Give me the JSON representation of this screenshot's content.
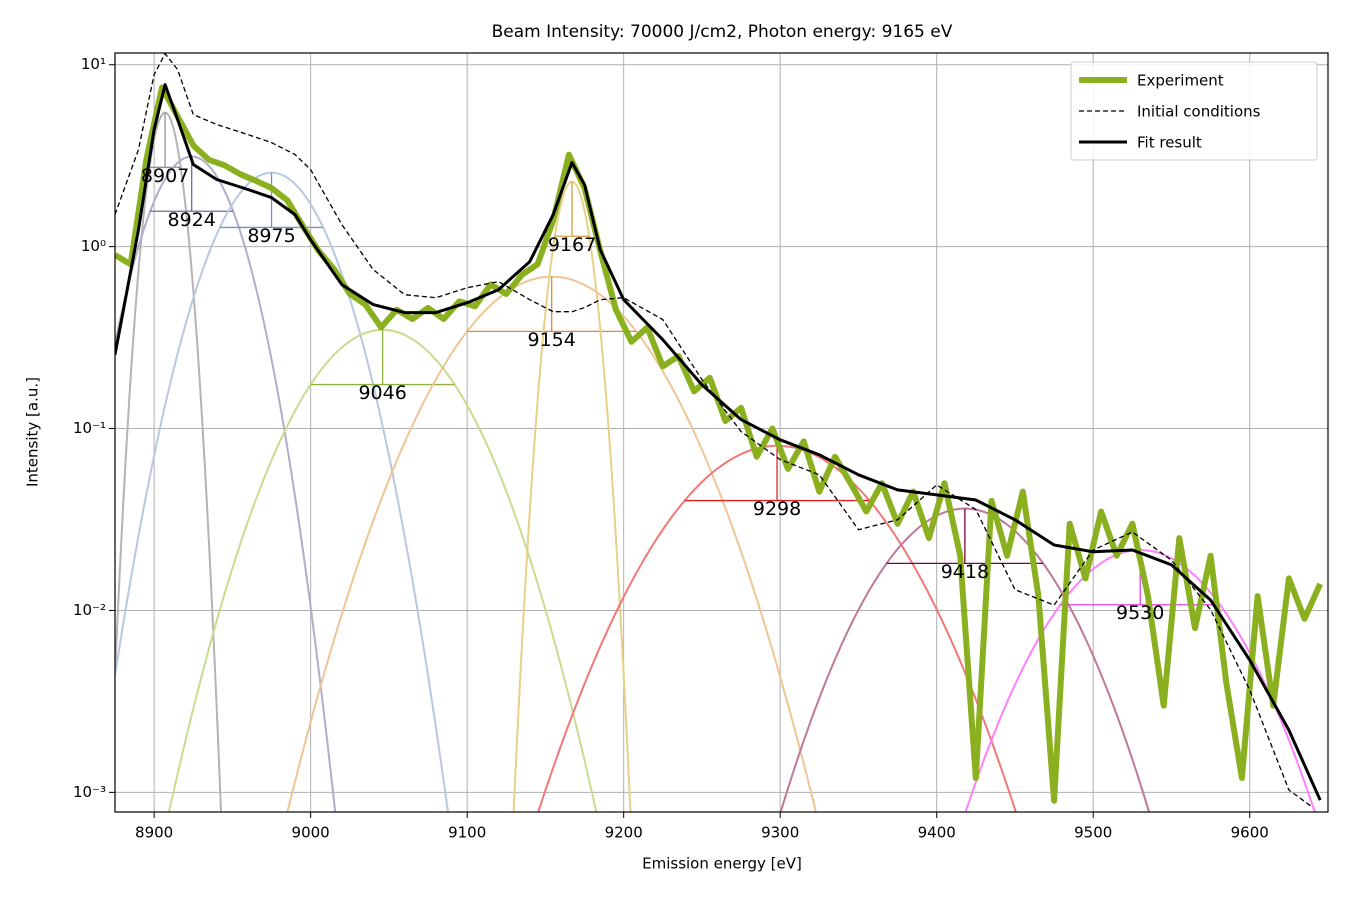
{
  "chart_data": {
    "type": "line",
    "title": "Beam Intensity: 70000 J/cm2, Photon energy: 9165 eV",
    "x_label": "Emission energy [eV]",
    "y_label": "Intensity [a.u.]",
    "log_y": true,
    "grid": true,
    "legend": "upper right",
    "xlim": [
      8875,
      9650
    ],
    "ylim": [
      0.00078,
      11.6
    ],
    "xticks": [
      8900,
      9000,
      9100,
      9200,
      9300,
      9400,
      9500,
      9600
    ],
    "yticks": [
      {
        "value": 0.001,
        "label": "10⁻³"
      },
      {
        "value": 0.01,
        "label": "10⁻²"
      },
      {
        "value": 0.1,
        "label": "10⁻¹"
      },
      {
        "value": 1,
        "label": "10⁰"
      },
      {
        "value": 10,
        "label": "10¹"
      }
    ],
    "series": [
      {
        "name": "Experiment",
        "color": "#8ab020",
        "style": "solid",
        "width": 6,
        "x": [
          8875,
          8885,
          8895,
          8905,
          8915,
          8925,
          8935,
          8945,
          8955,
          8965,
          8975,
          8985,
          8995,
          9005,
          9015,
          9025,
          9035,
          9045,
          9055,
          9065,
          9075,
          9085,
          9095,
          9105,
          9115,
          9125,
          9135,
          9145,
          9155,
          9165,
          9175,
          9185,
          9195,
          9205,
          9215,
          9225,
          9235,
          9245,
          9255,
          9265,
          9275,
          9285,
          9295,
          9305,
          9315,
          9325,
          9335,
          9345,
          9355,
          9365,
          9375,
          9385,
          9395,
          9405,
          9415,
          9425,
          9435,
          9445,
          9455,
          9465,
          9475,
          9485,
          9495,
          9505,
          9515,
          9525,
          9535,
          9545,
          9555,
          9565,
          9575,
          9585,
          9595,
          9605,
          9615,
          9625,
          9635,
          9645
        ],
        "values": [
          0.9,
          0.8,
          3.0,
          7.5,
          5.2,
          3.6,
          3.0,
          2.8,
          2.5,
          2.3,
          2.1,
          1.8,
          1.3,
          0.95,
          0.75,
          0.55,
          0.48,
          0.36,
          0.45,
          0.4,
          0.46,
          0.4,
          0.5,
          0.47,
          0.62,
          0.55,
          0.7,
          0.8,
          1.4,
          3.2,
          2.1,
          0.95,
          0.45,
          0.3,
          0.36,
          0.22,
          0.25,
          0.16,
          0.19,
          0.11,
          0.13,
          0.07,
          0.1,
          0.06,
          0.085,
          0.045,
          0.07,
          0.05,
          0.035,
          0.05,
          0.03,
          0.045,
          0.025,
          0.05,
          0.02,
          0.0012,
          0.04,
          0.02,
          0.045,
          0.012,
          0.0009,
          0.03,
          0.015,
          0.035,
          0.02,
          0.03,
          0.012,
          0.003,
          0.025,
          0.008,
          0.02,
          0.004,
          0.0012,
          0.012,
          0.003,
          0.015,
          0.009,
          0.014
        ]
      },
      {
        "name": "Initial conditions",
        "color": "#000000",
        "style": "dashed",
        "width": 1.3,
        "x": [
          8875,
          8890,
          8900,
          8907,
          8915,
          8925,
          8940,
          8960,
          8975,
          8990,
          9000,
          9020,
          9040,
          9060,
          9080,
          9100,
          9120,
          9140,
          9155,
          9167,
          9175,
          9185,
          9200,
          9225,
          9250,
          9275,
          9300,
          9325,
          9350,
          9375,
          9400,
          9425,
          9450,
          9475,
          9500,
          9525,
          9550,
          9575,
          9600,
          9625,
          9640
        ],
        "values": [
          1.5,
          3.42,
          8.83,
          11.5,
          9.4,
          5.32,
          4.69,
          4.13,
          3.73,
          3.21,
          2.65,
          1.32,
          0.747,
          0.544,
          0.524,
          0.595,
          0.642,
          0.511,
          0.439,
          0.439,
          0.462,
          0.511,
          0.524,
          0.397,
          0.186,
          0.0962,
          0.0675,
          0.0557,
          0.0278,
          0.0315,
          0.049,
          0.0359,
          0.013,
          0.0107,
          0.0215,
          0.027,
          0.0189,
          0.0101,
          0.00366,
          0.00103,
          0.00083
        ]
      },
      {
        "name": "Fit result",
        "color": "#000000",
        "style": "solid",
        "width": 3,
        "x": [
          8875,
          8890,
          8900,
          8907,
          8915,
          8925,
          8940,
          8960,
          8975,
          8990,
          9000,
          9020,
          9040,
          9060,
          9080,
          9100,
          9120,
          9140,
          9155,
          9167,
          9175,
          9185,
          9200,
          9225,
          9250,
          9275,
          9300,
          9325,
          9350,
          9375,
          9400,
          9425,
          9450,
          9475,
          9500,
          9525,
          9550,
          9575,
          9600,
          9625,
          9645
        ],
        "values": [
          0.255,
          1.24,
          4.4,
          7.78,
          5.0,
          2.83,
          2.34,
          2.06,
          1.86,
          1.5,
          1.09,
          0.618,
          0.48,
          0.434,
          0.434,
          0.492,
          0.58,
          0.827,
          1.5,
          2.9,
          2.19,
          0.963,
          0.511,
          0.308,
          0.174,
          0.112,
          0.0867,
          0.0717,
          0.0557,
          0.046,
          0.0432,
          0.0405,
          0.0315,
          0.0229,
          0.021,
          0.0215,
          0.0178,
          0.0114,
          0.00534,
          0.0022,
          0.000906
        ]
      }
    ],
    "components": [
      {
        "center": 8907,
        "height": 5.46,
        "fwhm": 20,
        "color": "#b4b4b4",
        "marker_color": "#909090"
      },
      {
        "center": 8924,
        "height": 3.13,
        "fwhm": 53,
        "color": "#aeaec8",
        "marker_color": "#6a6aa8"
      },
      {
        "center": 8975,
        "height": 2.55,
        "fwhm": 66,
        "color": "#b8c8e0",
        "marker_color": "#7890c8"
      },
      {
        "center": 9046,
        "height": 0.349,
        "fwhm": 92,
        "color": "#c8dc90",
        "marker_color": "#90b040"
      },
      {
        "center": 9154,
        "height": 0.684,
        "fwhm": 108,
        "color": "#f0c494",
        "marker_color": "#e08a30"
      },
      {
        "center": 9167,
        "height": 2.28,
        "fwhm": 22,
        "color": "#e8d088",
        "marker_color": "#d0a040"
      },
      {
        "center": 9298,
        "height": 0.0804,
        "fwhm": 118,
        "color": "#f07878",
        "marker_color": "#e02020"
      },
      {
        "center": 9418,
        "height": 0.0363,
        "fwhm": 100,
        "color": "#c07898",
        "marker_color": "#800040"
      },
      {
        "center": 9530,
        "height": 0.0215,
        "fwhm": 102,
        "color": "#ff80ff",
        "marker_color": "#e040e0"
      }
    ]
  }
}
